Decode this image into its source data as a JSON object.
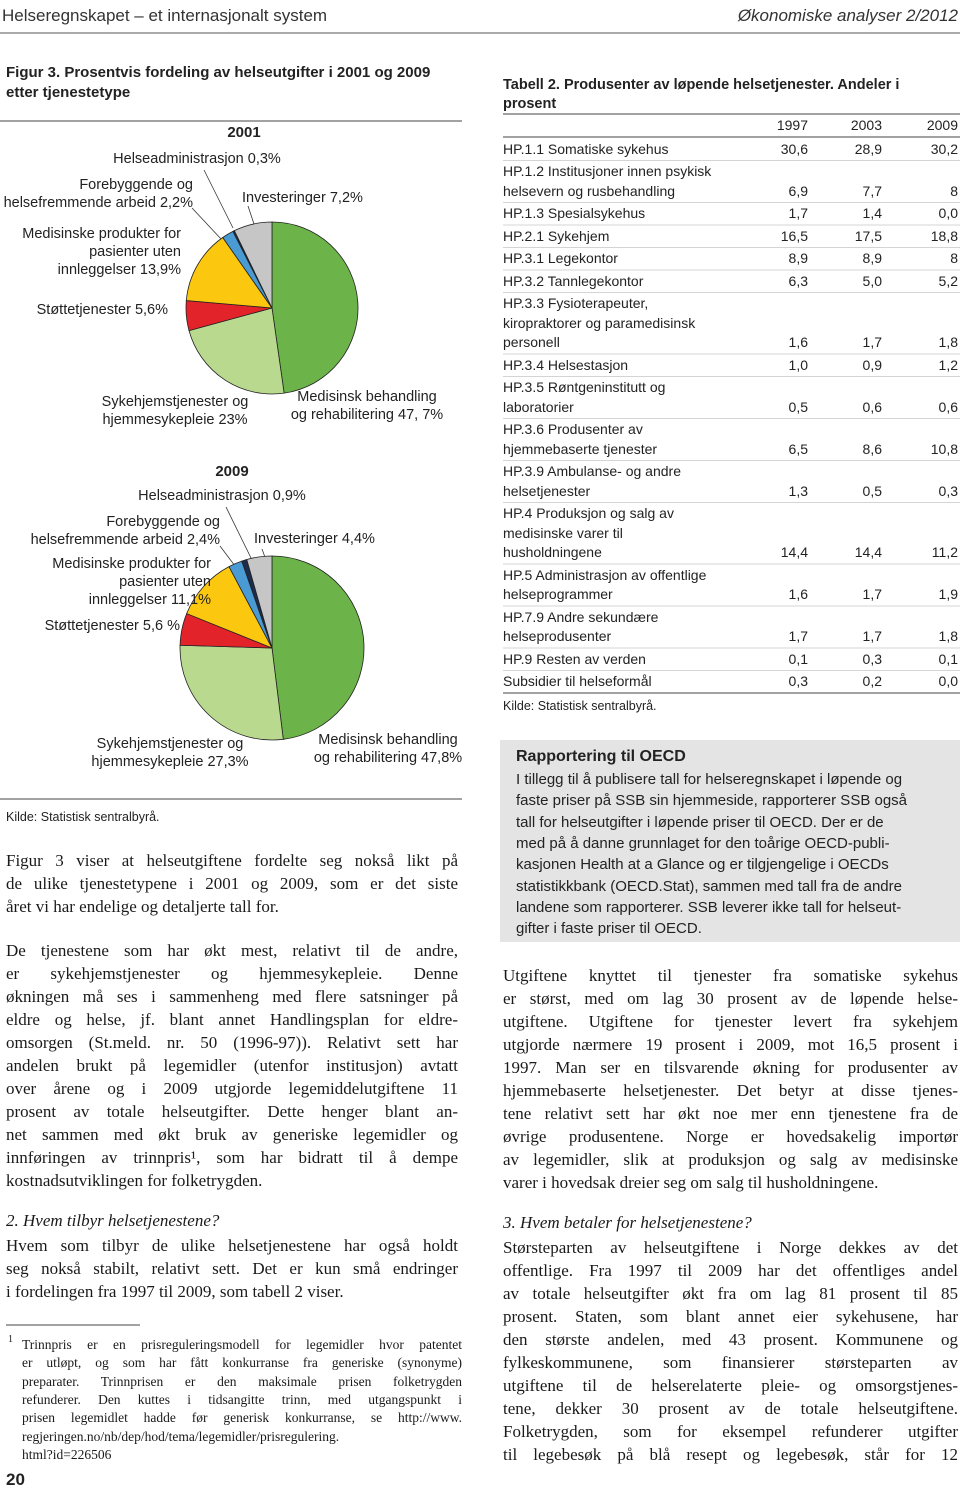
{
  "header": {
    "left": "Helseregnskapet – et internasjonalt system",
    "right": "Økonomiske analyser 2/2012"
  },
  "figure": {
    "title": [
      "Figur 3. Prosentvis fordeling av helseutgifter i 2001 og 2009",
      "etter tjenestetype"
    ],
    "source": "Kilde: Statistisk sentralbyrå."
  },
  "chart_data": [
    {
      "type": "pie",
      "title": "2001",
      "values": [
        47.7,
        23,
        5.6,
        13.9,
        2.2,
        0.3,
        7.2
      ],
      "value_labels": [
        "Medisinsk behandling\nog rehabilitering 47, 7%",
        "Sykehjemstjenester og\nhjemmesykepleie 23%",
        "Støttetjenester 5,6%",
        "Medisinske produkter for\npasienter uten\ninnleggelser 13,9%",
        "Forebyggende og\nhelsefremmende arbeid 2,2%",
        "Helseadministrasjon 0,3%",
        "Investeringer 7,2%"
      ],
      "colors": [
        "#6cb34a",
        "#b9d98f",
        "#e2232a",
        "#fcc80f",
        "#4a9ad3",
        "#1d2b4c",
        "#c6c6c6"
      ]
    },
    {
      "type": "pie",
      "title": "2009",
      "values": [
        47.8,
        27.3,
        5.6,
        11.1,
        2.4,
        0.9,
        4.4
      ],
      "value_labels": [
        "Medisinsk behandling\nog rehabilitering 47,8%",
        "Sykehjemstjenester og\nhjemmesykepleie 27,3%",
        "Støttetjenester 5,6 %",
        "Medisinske produkter for\npasienter uten\ninnleggelser 11,1%",
        "Forebyggende og\nhelsefremmende arbeid 2,4%",
        "Helseadministrasjon 0,9%",
        "Investeringer 4,4%"
      ],
      "colors": [
        "#6cb34a",
        "#b9d98f",
        "#e2232a",
        "#fcc80f",
        "#4a9ad3",
        "#1d2b4c",
        "#c6c6c6"
      ]
    }
  ],
  "body_left": {
    "paragraphs": [
      [
        "Figur 3 viser at helseutgiftene fordelte seg nokså likt på",
        "de ulike tjenestetypene i 2001 og 2009, som er det siste",
        "året vi har endelige og detaljerte tall for."
      ],
      [
        "De tjenestene som har økt mest, relativt til de andre,",
        "er sykehjemstjenester og hjemmesykepleie. Denne",
        "økningen må ses i sammenheng med flere satsninger på",
        "eldre og helse, jf. blant annet Handlingsplan for eldre-",
        "omsorgen (St.meld. nr. 50 (1996-97)). Relativt sett har",
        "andelen brukt på legemidler (utenfor institusjon) avtatt",
        "over årene og i 2009 utgjorde legemiddelutgiftene 11",
        "prosent av totale helseutgifter. Dette henger blant an-",
        "net sammen med økt bruk av generiske legemidler og",
        "innføringen av trinnpris¹, som har bidratt til å dempe",
        "kostnadsutviklingen for folketrygden."
      ]
    ],
    "heading": "2. Hvem tilbyr helsetjenestene?",
    "after": [
      "Hvem som tilbyr de ulike helsetjenestene har også holdt",
      "seg nokså stabilt, relativt sett. Det er kun små endringer",
      "i fordelingen fra 1997 til 2009, som tabell 2 viser."
    ]
  },
  "footnote": {
    "marker": "1",
    "lines": [
      "Trinnpris er en prisreguleringsmodell for legemidler hvor patentet",
      "er utløpt, og som har fått konkurranse fra generiske (synonyme)",
      "preparater. Trinnprisen er den maksimale prisen folketrygden",
      "refunderer. Den kuttes i tidsangitte trinn, med utgangspunkt i",
      "prisen legemidlet hadde før generisk konkurranse, se http://www.",
      "regjeringen.no/nb/dep/hod/tema/legemidler/prisregulering.",
      "html?id=226506"
    ]
  },
  "page_number": "20",
  "table": {
    "title": "Tabell 2. Produsenter av løpende helsetjenester. Andeler i\nprosent",
    "columns": [
      "1997",
      "2003",
      "2009"
    ],
    "rows": [
      {
        "label": [
          "HP.1.1 Somatiske sykehus"
        ],
        "values": [
          "30,6",
          "28,9",
          "30,2"
        ]
      },
      {
        "label": [
          "HP.1.2 Institusjoner innen psykisk",
          "helsevern og rusbehandling"
        ],
        "values": [
          "6,9",
          "7,7",
          "8"
        ]
      },
      {
        "label": [
          "HP.1.3 Spesialsykehus"
        ],
        "values": [
          "1,7",
          "1,4",
          "0,0"
        ]
      },
      {
        "label": [
          "HP.2.1 Sykehjem"
        ],
        "values": [
          "16,5",
          "17,5",
          "18,8"
        ]
      },
      {
        "label": [
          "HP.3.1 Legekontor"
        ],
        "values": [
          "8,9",
          "8,9",
          "8"
        ]
      },
      {
        "label": [
          "HP.3.2 Tannlegekontor"
        ],
        "values": [
          "6,3",
          "5,0",
          "5,2"
        ]
      },
      {
        "label": [
          "HP.3.3 Fysioterapeuter,",
          "kiropraktorer og paramedisinsk",
          "personell"
        ],
        "values": [
          "1,6",
          "1,7",
          "1,8"
        ]
      },
      {
        "label": [
          "HP.3.4 Helsestasjon"
        ],
        "values": [
          "1,0",
          "0,9",
          "1,2"
        ]
      },
      {
        "label": [
          "HP.3.5 Røntgeninstitutt og",
          "laboratorier"
        ],
        "values": [
          "0,5",
          "0,6",
          "0,6"
        ]
      },
      {
        "label": [
          "HP.3.6 Produsenter av",
          "hjemmebaserte tjenester"
        ],
        "values": [
          "6,5",
          "8,6",
          "10,8"
        ]
      },
      {
        "label": [
          "HP.3.9 Ambulanse- og andre",
          "helsetjenester"
        ],
        "values": [
          "1,3",
          "0,5",
          "0,3"
        ]
      },
      {
        "label": [
          "HP.4 Produksjon og salg av",
          "medisinske varer til",
          "husholdningene"
        ],
        "values": [
          "14,4",
          "14,4",
          "11,2"
        ]
      },
      {
        "label": [
          "HP.5 Administrasjon av offentlige",
          "helseprogrammer"
        ],
        "values": [
          "1,6",
          "1,7",
          "1,9"
        ]
      },
      {
        "label": [
          "HP.7.9 Andre sekundære",
          "helseprodusenter"
        ],
        "values": [
          "1,7",
          "1,7",
          "1,8"
        ]
      },
      {
        "label": [
          "HP.9 Resten av verden"
        ],
        "values": [
          "0,1",
          "0,3",
          "0,1"
        ]
      },
      {
        "label": [
          "Subsidier til helseformål"
        ],
        "values": [
          "0,3",
          "0,2",
          "0,0"
        ]
      }
    ],
    "source": "Kilde: Statistisk sentralbyrå."
  },
  "box": {
    "title": "Rapportering til OECD",
    "lines": [
      "I tillegg til å publisere tall for helseregnskapet i løpende og",
      "faste priser på SSB sin hjemmeside, rapporterer SSB også",
      "tall for helseutgifter i løpende priser til OECD. Der er de",
      "med på å danne grunnlaget for den toårige OECD-publi-",
      "kasjonen Health at a Glance og er tilgjengelige i OECDs",
      "statistikkbank (OECD.Stat), sammen med tall fra de andre",
      "landene som rapporterer. SSB leverer ikke tall for helseut-",
      "gifter i faste priser til OECD."
    ]
  },
  "body_right": {
    "paragraph": [
      "Utgiftene knyttet til tjenester fra somatiske sykehus",
      "er størst, med om lag 30 prosent av de løpende helse-",
      "utgiftene. Utgiftene for tjenester levert fra sykehjem",
      "utgjorde nærmere 19 prosent i 2009, mot 16,5 prosent i",
      "1997. Man ser en tilsvarende økning for produsenter av",
      "hjemmebaserte helsetjenester. Det betyr at disse tjenes-",
      "tene relativt sett har økt noe mer enn tjenestene fra de",
      "øvrige produsentene. Norge er hovedsakelig importør",
      "av legemidler, slik at produksjon og salg av medisinske",
      "varer i hovedsak dreier seg om salg til husholdningene."
    ],
    "heading": "3. Hvem betaler for helsetjenestene?",
    "after": [
      "Størsteparten av helseutgiftene i Norge dekkes av det",
      "offentlige. Fra 1997 til 2009 har det offentliges andel",
      "av totale helseutgifter økt fra om lag 81 prosent til 85",
      "prosent. Staten, som blant annet eier sykehusene, har",
      "den største andelen, med 43 prosent. Kommunene og",
      "fylkeskommunene, som finansierer størsteparten av",
      "utgiftene til de helserelaterte pleie- og omsorgstjenes-",
      "tene, dekker 30 prosent av de totale helseutgiftene.",
      "Folketrygden, som for eksempel refunderer utgifter",
      "til legebesøk på blå resept og legebesøk, står for 12"
    ]
  }
}
